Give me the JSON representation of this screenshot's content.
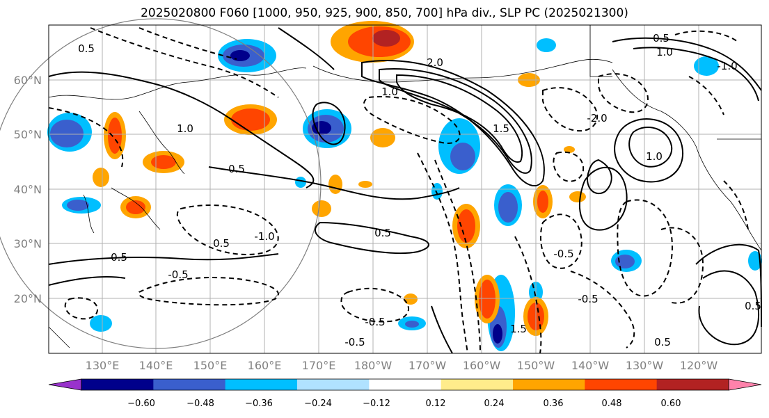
{
  "title": "2025020800 F060 [1000, 950, 925, 900, 850, 700] hPa div., SLP PC (2025021300)",
  "lat_labels": [
    "60°N",
    "50°N",
    "40°N",
    "30°N",
    "20°N"
  ],
  "lon_labels": [
    "130°E",
    "140°E",
    "150°E",
    "160°E",
    "170°E",
    "180°W",
    "170°W",
    "160°W",
    "150°W",
    "140°W",
    "130°W",
    "120°W"
  ],
  "colorbar": {
    "ticks": [
      "−0.60",
      "−0.48",
      "−0.36",
      "−0.24",
      "−0.12",
      "0.12",
      "0.24",
      "0.36",
      "0.48",
      "0.60"
    ],
    "colors": [
      "#9932cc",
      "#00008b",
      "#3a5fcd",
      "#00bfff",
      "#b0e2ff",
      "#ffffff",
      "#ffec8b",
      "#ffa500",
      "#ff4500",
      "#b22222",
      "#ff82ab"
    ]
  },
  "contour_labels": [
    "0.5",
    "0.5",
    "1.0",
    "0.5",
    "-1.0",
    "-0.5",
    "0.5",
    "-0.5",
    "1.0",
    "1.5",
    "2.0",
    "-2.0",
    "1.0",
    "-0.5",
    "0.5",
    "-0.5",
    "1.0",
    "0.5",
    "-0.5",
    "0.5",
    "-1.0",
    "0.5",
    "1.5"
  ],
  "map": {
    "land_color": "#ffffff",
    "coast_color": "#000000",
    "grid_color": "#b0b0b0"
  }
}
